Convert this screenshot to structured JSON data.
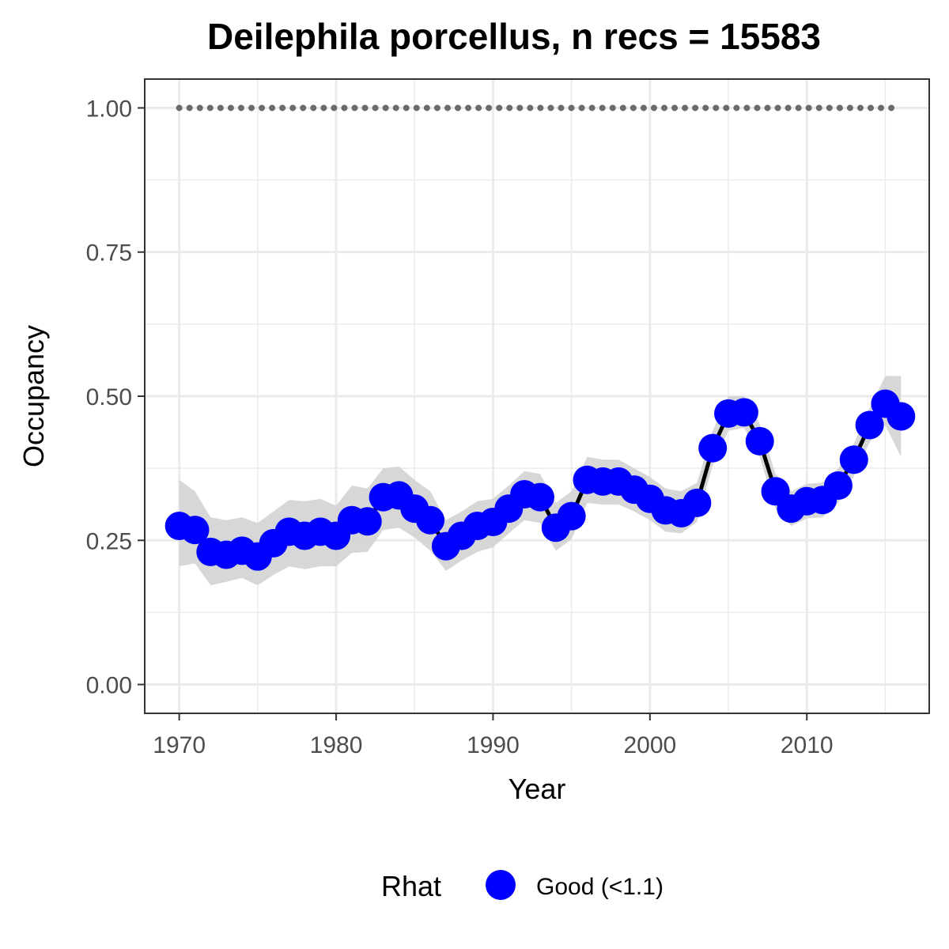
{
  "chart_data": {
    "type": "line",
    "title": "Deilephila porcellus, n recs = 15583",
    "xlabel": "Year",
    "ylabel": "Occupancy",
    "xlim": [
      1967.8,
      2017.8
    ],
    "ylim": [
      -0.05,
      1.05
    ],
    "x_ticks": [
      1970,
      1980,
      1990,
      2000,
      2010
    ],
    "x_tick_labels": [
      "1970",
      "1980",
      "1990",
      "2000",
      "2010"
    ],
    "y_ticks": [
      0,
      0.25,
      0.5,
      0.75,
      1.0
    ],
    "y_tick_labels": [
      "0.00",
      "0.25",
      "0.50",
      "0.75",
      "1.00"
    ],
    "grid": true,
    "legend": {
      "title": "Rhat",
      "position": "bottom",
      "entries": [
        {
          "label": "Good (<1.1)",
          "color": "#0000ff"
        }
      ]
    },
    "colors": {
      "points": "#0000ff",
      "line": "#000000",
      "ribbon": "#d3d3d3",
      "reference": "#6b6b6b",
      "grid": "#ebebeb",
      "border": "#333333"
    },
    "reference_line": {
      "y": 1.0,
      "style": "dotted",
      "x": [
        1970,
        2016
      ]
    },
    "series": [
      {
        "name": "Good (<1.1)",
        "x": [
          1970,
          1971,
          1972,
          1973,
          1974,
          1975,
          1976,
          1977,
          1978,
          1979,
          1980,
          1981,
          1982,
          1983,
          1984,
          1985,
          1986,
          1987,
          1988,
          1989,
          1990,
          1991,
          1992,
          1993,
          1994,
          1995,
          1996,
          1997,
          1998,
          1999,
          2000,
          2001,
          2002,
          2003,
          2004,
          2005,
          2006,
          2007,
          2008,
          2009,
          2010,
          2011,
          2012,
          2013,
          2014,
          2015,
          2016
        ],
        "y": [
          0.275,
          0.268,
          0.23,
          0.225,
          0.232,
          0.222,
          0.245,
          0.265,
          0.258,
          0.265,
          0.258,
          0.285,
          0.283,
          0.325,
          0.328,
          0.305,
          0.285,
          0.24,
          0.258,
          0.275,
          0.282,
          0.305,
          0.33,
          0.325,
          0.272,
          0.292,
          0.355,
          0.352,
          0.352,
          0.338,
          0.322,
          0.302,
          0.297,
          0.315,
          0.41,
          0.47,
          0.472,
          0.422,
          0.335,
          0.305,
          0.318,
          0.32,
          0.345,
          0.39,
          0.45,
          0.487,
          0.465
        ],
        "lower": [
          0.205,
          0.21,
          0.172,
          0.178,
          0.185,
          0.172,
          0.19,
          0.205,
          0.2,
          0.205,
          0.205,
          0.228,
          0.23,
          0.268,
          0.272,
          0.255,
          0.232,
          0.197,
          0.215,
          0.23,
          0.238,
          0.262,
          0.285,
          0.28,
          0.232,
          0.252,
          0.315,
          0.312,
          0.312,
          0.3,
          0.285,
          0.265,
          0.262,
          0.282,
          0.38,
          0.44,
          0.445,
          0.395,
          0.305,
          0.275,
          0.288,
          0.29,
          0.315,
          0.362,
          0.42,
          0.45,
          0.395
        ],
        "upper": [
          0.355,
          0.335,
          0.29,
          0.285,
          0.29,
          0.28,
          0.3,
          0.32,
          0.318,
          0.322,
          0.31,
          0.345,
          0.34,
          0.375,
          0.378,
          0.355,
          0.335,
          0.285,
          0.3,
          0.318,
          0.322,
          0.345,
          0.37,
          0.365,
          0.315,
          0.335,
          0.395,
          0.39,
          0.39,
          0.375,
          0.36,
          0.34,
          0.335,
          0.35,
          0.44,
          0.5,
          0.5,
          0.452,
          0.365,
          0.335,
          0.348,
          0.35,
          0.375,
          0.418,
          0.48,
          0.535,
          0.535
        ]
      }
    ]
  }
}
